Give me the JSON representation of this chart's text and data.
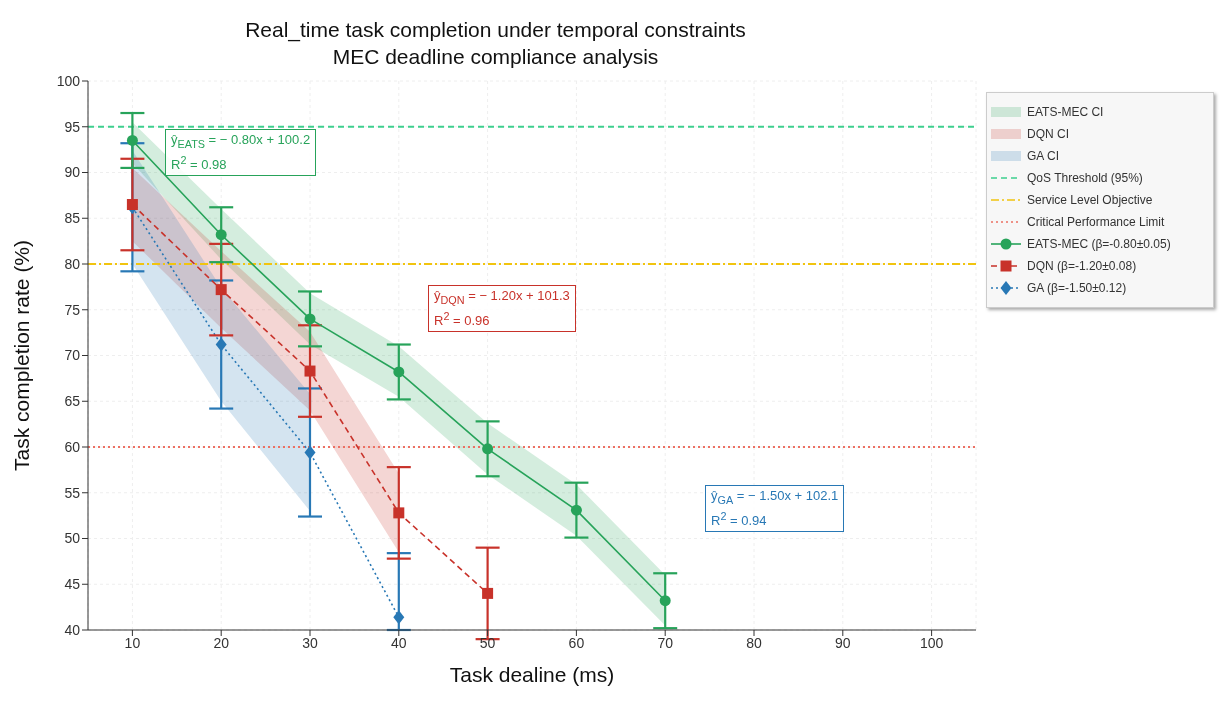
{
  "chart_data": {
    "type": "line",
    "title": "Real_time task completion under temporal constraints",
    "subtitle": "MEC deadline compliance analysis",
    "xlabel": "Task dealine (ms)",
    "ylabel": "Task completion rate (%)",
    "x": [
      10,
      20,
      30,
      40,
      50,
      60,
      70
    ],
    "xlim": [
      5,
      105
    ],
    "xticks": [
      10,
      20,
      30,
      40,
      50,
      60,
      70,
      80,
      90,
      100
    ],
    "ylim": [
      40,
      100
    ],
    "yticks": [
      40,
      45,
      50,
      55,
      60,
      65,
      70,
      75,
      80,
      85,
      90,
      95,
      100
    ],
    "grid": true,
    "legend": "right",
    "series": [
      {
        "name": "EATS-MEC (β=-0.80±0.05)",
        "color": "#27a35a",
        "marker": "circle",
        "line_style": "solid",
        "values": [
          93.5,
          83.2,
          74,
          68.2,
          59.8,
          53.1,
          43.2
        ],
        "errors": [
          3,
          3,
          3,
          3,
          3,
          3,
          3
        ],
        "lower": [
          91,
          80.5,
          71.2,
          65.5,
          57,
          50.3,
          40.5
        ],
        "upper": [
          95.5,
          86,
          76.8,
          71,
          62.6,
          55.9,
          46
        ]
      },
      {
        "name": "DQN (β=-1.20±0.08)",
        "color": "#c8322a",
        "marker": "square",
        "line_style": "dashed",
        "values": [
          86.5,
          77.2,
          68.3,
          52.8,
          44,
          null,
          null
        ],
        "errors": [
          5,
          5,
          5,
          5,
          5,
          null,
          null
        ],
        "lower": [
          82.5,
          73,
          64,
          48.5,
          null,
          null,
          null
        ],
        "upper": [
          90.5,
          81.4,
          72.6,
          57.1,
          null,
          null,
          null
        ]
      },
      {
        "name": "GA (β=-1.50±0.12)",
        "color": "#2878b5",
        "marker": "diamond",
        "line_style": "dotted",
        "values": [
          86.2,
          71.2,
          59.4,
          41.4,
          null,
          null,
          null
        ],
        "errors": [
          7,
          7,
          7,
          [
            40,
            48.4
          ],
          null,
          null,
          null
        ],
        "lower": [
          80,
          65,
          53,
          null,
          null,
          null,
          null
        ],
        "upper": [
          92.4,
          77.4,
          65.8,
          null,
          null,
          null,
          null
        ]
      }
    ],
    "ref_lines": [
      {
        "axis": "y",
        "value": 95,
        "label": "QoS Threshold (95%)",
        "color": "#3ecf8e",
        "line_style": "dashed"
      },
      {
        "axis": "y",
        "value": 80,
        "label": "Service Level Objective",
        "color": "#f1c40f",
        "line_style": "dashdot"
      },
      {
        "axis": "y",
        "value": 60,
        "label": "Critical Performance Limit",
        "color": "#ec7063",
        "line_style": "dotted"
      }
    ],
    "annotations": [
      "ŷ$_{EATS}$ = − 0.80x + 100.2\nR$^{2}$ = 0.98",
      "ŷ$_{DQN}$ = − 1.20x + 101.3\nR$^{2}$ = 0.96",
      "ŷ$_{GA}$ = − 1.50x + 102.1\nR$^{2}$ = 0.94",
      "EATS-MEC CI",
      "DQN CI",
      "GA CI"
    ]
  }
}
